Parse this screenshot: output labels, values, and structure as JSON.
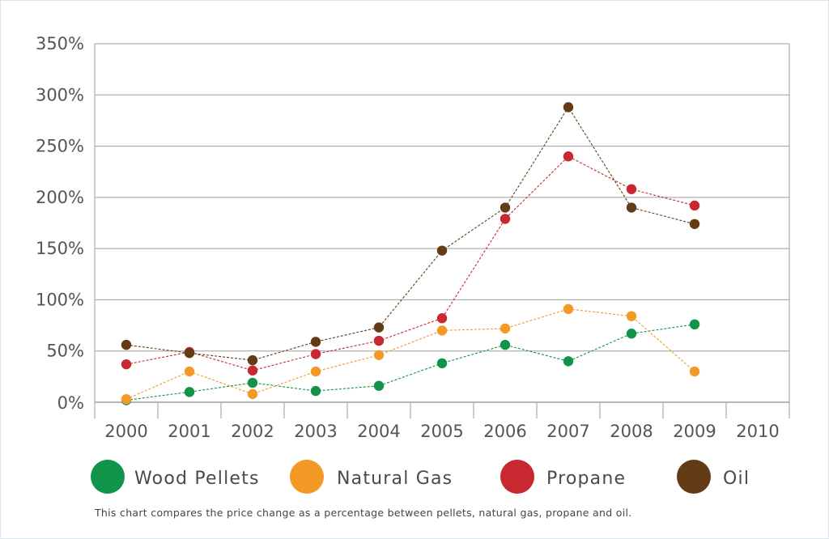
{
  "chart_data": {
    "type": "line",
    "x": [
      "2000",
      "2001",
      "2002",
      "2003",
      "2004",
      "2005",
      "2006",
      "2007",
      "2008",
      "2009",
      "2010"
    ],
    "y_ticks": [
      "0%",
      "50%",
      "100%",
      "150%",
      "200%",
      "250%",
      "300%",
      "350%"
    ],
    "ylim": [
      0,
      350
    ],
    "grid": true,
    "line_style": "dashed",
    "legend_position": "bottom",
    "series": [
      {
        "name": "Wood Pellets",
        "color": "#12934a",
        "values": [
          2,
          10,
          19,
          11,
          16,
          38,
          56,
          40,
          67,
          76,
          null
        ]
      },
      {
        "name": "Natural Gas",
        "color": "#f39a26",
        "values": [
          3,
          30,
          8,
          30,
          46,
          70,
          72,
          91,
          84,
          30,
          null
        ]
      },
      {
        "name": "Propane",
        "color": "#c8282f",
        "values": [
          37,
          49,
          31,
          47,
          60,
          82,
          179,
          240,
          208,
          192,
          null
        ]
      },
      {
        "name": "Oil",
        "color": "#633c15",
        "values": [
          56,
          48,
          41,
          59,
          73,
          148,
          190,
          288,
          190,
          174,
          null
        ]
      }
    ]
  },
  "caption": "This chart compares the price change as a percentage between pellets, natural gas, propane and oil."
}
